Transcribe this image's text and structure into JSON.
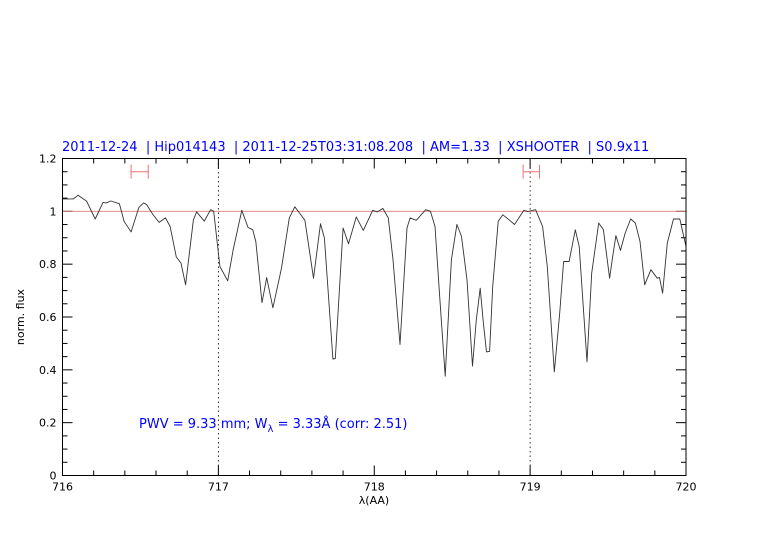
{
  "chart_data": {
    "type": "line",
    "title": "2011-12-24  | Hip014143  | 2011-12-25T03:31:08.208  | AM=1.33  | XSHOOTER  | S0.9x11",
    "xlabel": "λ(AA)",
    "ylabel": "norm. flux",
    "xlim": [
      716,
      720
    ],
    "ylim": [
      0,
      1.2
    ],
    "xticks": [
      "716",
      "717",
      "718",
      "719",
      "720"
    ],
    "yticks": [
      "0",
      "0.2",
      "0.4",
      "0.6",
      "0.8",
      "1",
      "1.2"
    ],
    "grid": false,
    "reference_line_y": 1,
    "vertical_dotted_lines_x": [
      717,
      719
    ],
    "range_markers": [
      {
        "x": [
          716.44,
          716.55
        ],
        "y": 1.15
      },
      {
        "x": [
          718.955,
          719.06
        ],
        "y": 1.15
      }
    ],
    "annotation": {
      "prefix": "PWV = 9.33 mm; W",
      "subscript": "λ",
      "suffix": " = 3.33Å (corr: 2.51)"
    },
    "colors": {
      "spectrum": "#333333",
      "reference_line": "#e07a7a",
      "range_markers": "#f07070",
      "text": "#0000ff"
    },
    "series": [
      {
        "x": [
          716.0,
          716.07,
          716.1,
          716.155,
          716.21,
          716.26,
          716.28,
          716.31,
          716.365,
          716.395,
          716.44,
          716.49,
          716.52,
          716.54,
          716.58,
          716.62,
          716.66,
          716.69,
          716.73,
          716.76,
          716.79,
          716.84,
          716.86,
          716.91,
          716.95,
          716.97,
          717.01,
          717.06,
          717.095,
          717.15,
          717.19,
          717.22,
          717.24,
          717.28,
          717.31,
          717.35,
          717.405,
          717.455,
          717.49,
          717.52,
          717.555,
          717.61,
          717.655,
          717.68,
          717.735,
          717.75,
          717.8,
          717.835,
          717.885,
          717.93,
          717.99,
          718.02,
          718.055,
          718.09,
          718.12,
          718.165,
          718.21,
          718.23,
          718.27,
          718.33,
          718.36,
          718.39,
          718.42,
          718.455,
          718.495,
          718.53,
          718.56,
          718.595,
          718.63,
          718.655,
          718.68,
          718.7,
          718.72,
          718.74,
          718.76,
          718.795,
          718.825,
          718.865,
          718.9,
          718.96,
          718.985,
          719.035,
          719.08,
          719.11,
          719.155,
          719.19,
          719.215,
          719.25,
          719.29,
          719.315,
          719.365,
          719.395,
          719.44,
          719.47,
          719.51,
          719.53,
          719.55,
          719.58,
          719.61,
          719.645,
          719.675,
          719.705,
          719.735,
          719.775,
          719.815,
          719.83,
          719.85,
          719.88,
          719.92,
          719.96,
          720.0
        ],
        "y": [
          1.047,
          1.047,
          1.061,
          1.038,
          0.971,
          1.034,
          1.032,
          1.039,
          1.029,
          0.962,
          0.922,
          1.015,
          1.032,
          1.025,
          0.988,
          0.958,
          0.975,
          0.943,
          0.827,
          0.804,
          0.722,
          0.968,
          0.998,
          0.963,
          1.006,
          1.0,
          0.791,
          0.737,
          0.855,
          1.004,
          0.939,
          0.93,
          0.886,
          0.654,
          0.749,
          0.635,
          0.785,
          0.975,
          1.017,
          0.994,
          0.966,
          0.747,
          0.953,
          0.899,
          0.441,
          0.443,
          0.937,
          0.877,
          0.979,
          0.928,
          1.004,
          0.998,
          1.011,
          0.975,
          0.817,
          0.496,
          0.937,
          0.975,
          0.966,
          1.006,
          1.0,
          0.943,
          0.677,
          0.376,
          0.817,
          0.95,
          0.905,
          0.741,
          0.414,
          0.589,
          0.709,
          0.576,
          0.468,
          0.47,
          0.715,
          0.962,
          0.987,
          0.968,
          0.95,
          1.004,
          0.999,
          1.006,
          0.943,
          0.791,
          0.392,
          0.614,
          0.81,
          0.81,
          0.93,
          0.867,
          0.43,
          0.766,
          0.956,
          0.93,
          0.747,
          0.829,
          0.908,
          0.852,
          0.918,
          0.971,
          0.956,
          0.886,
          0.722,
          0.779,
          0.747,
          0.75,
          0.69,
          0.88,
          0.971,
          0.971,
          0.867
        ]
      }
    ]
  }
}
